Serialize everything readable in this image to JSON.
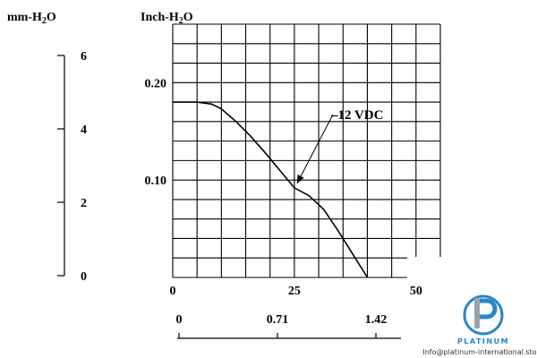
{
  "chart_data": {
    "type": "line",
    "title": "",
    "x_scales": [
      {
        "unit": "",
        "ticks": [
          0,
          25,
          50
        ],
        "tick_labels": [
          "0",
          "25",
          "50"
        ]
      },
      {
        "unit": "",
        "ticks": [
          0,
          0.71,
          1.42
        ],
        "tick_labels": [
          "0",
          "0.71",
          "1.42"
        ]
      }
    ],
    "y_scales": [
      {
        "unit": "mm-H2O",
        "label_prefix": "mm-H",
        "label_sub": "2",
        "label_suffix": "O",
        "ticks": [
          0,
          2,
          4,
          6
        ],
        "tick_labels": [
          "0",
          "2",
          "4",
          "6"
        ]
      },
      {
        "unit": "Inch-H2O",
        "label_prefix": "Inch-H",
        "label_sub": "2",
        "label_suffix": "O",
        "ticks": [
          0,
          0.1,
          0.2
        ],
        "tick_labels": [
          "0.10",
          "0.20"
        ]
      }
    ],
    "xlim": [
      0,
      55
    ],
    "ylim": [
      0,
      0.26
    ],
    "grid": true,
    "series": [
      {
        "name": "12 VDC",
        "x": [
          0,
          5,
          8,
          10,
          13,
          16,
          19,
          22,
          25,
          28,
          31,
          34,
          37,
          40
        ],
        "y": [
          0.18,
          0.18,
          0.178,
          0.173,
          0.16,
          0.145,
          0.128,
          0.11,
          0.092,
          0.084,
          0.07,
          0.048,
          0.024,
          0.0
        ]
      }
    ],
    "annotations": [
      {
        "text": "12 VDC",
        "points_to": [
          25,
          0.092
        ]
      }
    ]
  },
  "watermark": {
    "brand": "PLATINUM",
    "email": "Info@platinum-international.store"
  }
}
